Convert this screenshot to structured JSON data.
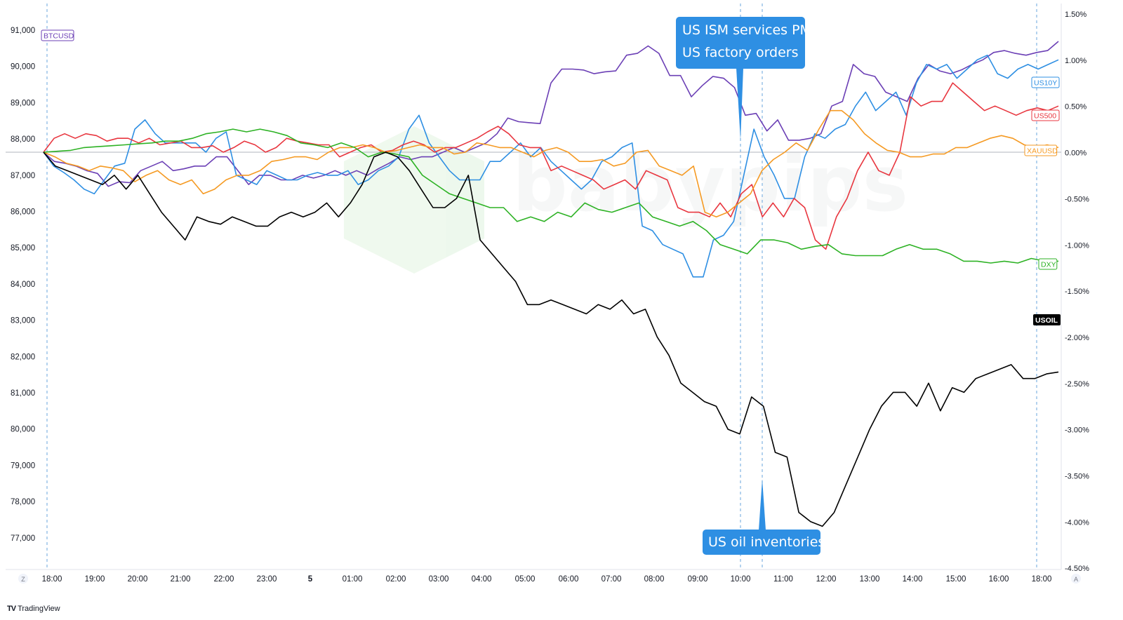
{
  "chart_data": {
    "type": "line",
    "left_axis": {
      "label": "BTCUSD",
      "ticks": [
        "91,000",
        "90,000",
        "89,000",
        "88,000",
        "87,000",
        "86,000",
        "85,000",
        "84,000",
        "83,000",
        "82,000",
        "81,000",
        "80,000",
        "79,000",
        "78,000",
        "77,000"
      ],
      "range": [
        76200,
        91500
      ]
    },
    "right_axis": {
      "ticks": [
        "1.50%",
        "1.00%",
        "0.50%",
        "0.00%",
        "-0.50%",
        "-1.00%",
        "-1.50%",
        "-2.00%",
        "-2.50%",
        "-3.00%",
        "-3.50%",
        "-4.00%",
        "-4.50%"
      ],
      "range": [
        -4.5,
        1.5
      ]
    },
    "x_ticks": [
      "18:00",
      "19:00",
      "20:00",
      "21:00",
      "22:00",
      "23:00",
      "5",
      "01:00",
      "02:00",
      "03:00",
      "04:00",
      "05:00",
      "06:00",
      "07:00",
      "08:00",
      "09:00",
      "10:00",
      "11:00",
      "12:00",
      "13:00",
      "14:00",
      "15:00",
      "16:00",
      "18:00"
    ],
    "series": [
      {
        "name": "BTCUSD",
        "color": "#6b3fb5",
        "values": [
          0,
          -0.1,
          -0.12,
          -0.15,
          -0.2,
          -0.23,
          -0.37,
          -0.32,
          -0.33,
          -0.2,
          -0.15,
          -0.1,
          -0.2,
          -0.18,
          -0.15,
          -0.15,
          -0.05,
          -0.05,
          -0.2,
          -0.35,
          -0.25,
          -0.25,
          -0.3,
          -0.3,
          -0.25,
          -0.28,
          -0.25,
          -0.2,
          -0.25,
          -0.2,
          -0.25,
          -0.18,
          -0.12,
          -0.05,
          -0.08,
          -0.05,
          -0.05,
          0,
          0.05,
          0.0,
          0.05,
          0.1,
          0.2,
          0.37,
          0.33,
          0.32,
          0.31,
          0.75,
          0.9,
          0.9,
          0.89,
          0.85,
          0.87,
          0.88,
          1.05,
          1.07,
          1.15,
          1.07,
          0.83,
          0.83,
          0.6,
          0.72,
          0.82,
          0.8,
          0.7,
          0.4,
          0.42,
          0.23,
          0.35,
          0.13,
          0.13,
          0.15,
          0.2,
          0.5,
          0.55,
          0.95,
          0.85,
          0.82,
          0.65,
          0.6,
          0.55,
          0.8,
          0.95,
          0.88,
          0.85,
          0.89,
          0.95,
          1.0,
          1.08,
          1.1,
          1.07,
          1.05,
          1.08,
          1.1,
          1.2
        ]
      },
      {
        "name": "US10Y",
        "color": "#2e8fe3",
        "values": [
          0,
          -0.15,
          -0.22,
          -0.3,
          -0.4,
          -0.45,
          -0.3,
          -0.15,
          -0.12,
          0.25,
          0.35,
          0.2,
          0.1,
          0.1,
          0.1,
          0.1,
          0.0,
          0.15,
          0.22,
          -0.25,
          -0.3,
          -0.35,
          -0.2,
          -0.25,
          -0.3,
          -0.3,
          -0.25,
          -0.22,
          -0.25,
          -0.25,
          -0.2,
          -0.35,
          -0.3,
          -0.2,
          -0.15,
          -0.05,
          0.25,
          0.4,
          0.1,
          -0.05,
          -0.2,
          -0.3,
          -0.3,
          -0.3,
          -0.1,
          -0.1,
          0.0,
          0.1,
          -0.05,
          0.05,
          -0.1,
          -0.2,
          -0.3,
          -0.4,
          -0.3,
          -0.1,
          -0.05,
          0.05,
          0.1,
          -0.8,
          -0.85,
          -1.0,
          -1.05,
          -1.1,
          -1.35,
          -1.35,
          -0.95,
          -0.9,
          -0.75,
          -0.25,
          0.25,
          -0.05,
          -0.25,
          -0.5,
          -0.5,
          -0.05,
          0.2,
          0.15,
          0.25,
          0.3,
          0.5,
          0.65,
          0.45,
          0.55,
          0.65,
          0.4,
          0.75,
          0.95,
          0.9,
          0.95,
          0.8,
          0.9,
          1.0,
          1.05,
          0.85,
          0.8,
          0.9,
          0.95,
          0.9,
          0.95,
          1.0
        ]
      },
      {
        "name": "US500",
        "color": "#e8363f",
        "values": [
          0,
          0.15,
          0.2,
          0.15,
          0.2,
          0.18,
          0.12,
          0.15,
          0.15,
          0.1,
          0.15,
          0.08,
          0.1,
          0.12,
          0.05,
          0.05,
          0.07,
          0.0,
          0.05,
          0.12,
          0.08,
          0.0,
          0.05,
          0.15,
          0.12,
          0.1,
          0.08,
          0.08,
          -0.05,
          0.0,
          0.05,
          0.08,
          0.0,
          0.02,
          0.08,
          0.12,
          0.08,
          0.0,
          0.05,
          0.05,
          0.1,
          0.15,
          0.22,
          0.28,
          0.2,
          0.08,
          0.05,
          0.05,
          -0.2,
          -0.15,
          -0.2,
          -0.25,
          -0.3,
          -0.4,
          -0.35,
          -0.3,
          -0.4,
          -0.2,
          -0.25,
          -0.3,
          -0.6,
          -0.65,
          -0.65,
          -0.7,
          -0.55,
          -0.7,
          -0.45,
          -0.35,
          -0.7,
          -0.55,
          -0.7,
          -0.5,
          -0.6,
          -0.95,
          -1.05,
          -0.7,
          -0.5,
          -0.2,
          0.0,
          -0.2,
          -0.25,
          0.0,
          0.6,
          0.5,
          0.55,
          0.55,
          0.75,
          0.65,
          0.55,
          0.45,
          0.5,
          0.45,
          0.4,
          0.45,
          0.48,
          0.45,
          0.5
        ]
      },
      {
        "name": "XAUUSD",
        "color": "#f59a23",
        "values": [
          0,
          -0.05,
          -0.12,
          -0.15,
          -0.2,
          -0.15,
          -0.17,
          -0.2,
          -0.32,
          -0.25,
          -0.2,
          -0.3,
          -0.35,
          -0.3,
          -0.45,
          -0.4,
          -0.3,
          -0.25,
          -0.25,
          -0.2,
          -0.1,
          -0.08,
          -0.05,
          -0.05,
          -0.08,
          0.0,
          0.05,
          0.05,
          0.08,
          0.05,
          0.0,
          0.02,
          0.05,
          0.08,
          0.05,
          0.05,
          -0.02,
          0.0,
          0.1,
          0.08,
          0.05,
          0.05,
          0.0,
          -0.05,
          0.02,
          0.05,
          0.0,
          -0.1,
          -0.1,
          -0.08,
          -0.15,
          -0.12,
          0.0,
          0.02,
          -0.15,
          -0.2,
          -0.25,
          -0.15,
          -0.65,
          -0.7,
          -0.65,
          -0.55,
          -0.45,
          -0.2,
          -0.08,
          0.0,
          0.1,
          0.02,
          0.25,
          0.45,
          0.45,
          0.35,
          0.2,
          0.1,
          0.02,
          0.0,
          -0.05,
          -0.05,
          -0.02,
          -0.02,
          0.05,
          0.05,
          0.1,
          0.15,
          0.18,
          0.15,
          0.08,
          0.05,
          0.08,
          0.05
        ]
      },
      {
        "name": "DXY",
        "color": "#2db224",
        "values": [
          0,
          0.01,
          0.02,
          0.05,
          0.06,
          0.07,
          0.08,
          0.09,
          0.1,
          0.12,
          0.12,
          0.15,
          0.2,
          0.22,
          0.25,
          0.22,
          0.25,
          0.22,
          0.18,
          0.1,
          0.08,
          0.05,
          0.1,
          0.05,
          -0.05,
          0.0,
          -0.02,
          -0.05,
          -0.25,
          -0.35,
          -0.45,
          -0.5,
          -0.55,
          -0.6,
          -0.6,
          -0.75,
          -0.7,
          -0.75,
          -0.65,
          -0.7,
          -0.55,
          -0.62,
          -0.65,
          -0.6,
          -0.55,
          -0.7,
          -0.75,
          -0.8,
          -0.75,
          -0.85,
          -1.0,
          -1.05,
          -1.1,
          -0.95,
          -0.95,
          -0.98,
          -1.05,
          -1.02,
          -1.0,
          -1.1,
          -1.12,
          -1.12,
          -1.12,
          -1.05,
          -1.0,
          -1.05,
          -1.05,
          -1.1,
          -1.18,
          -1.18,
          -1.2,
          -1.18,
          -1.2,
          -1.15,
          -1.18,
          -1.18
        ]
      },
      {
        "name": "USOIL",
        "color": "#000000",
        "values": [
          0,
          -0.15,
          -0.2,
          -0.25,
          -0.3,
          -0.35,
          -0.25,
          -0.4,
          -0.25,
          -0.45,
          -0.65,
          -0.8,
          -0.95,
          -0.7,
          -0.75,
          -0.78,
          -0.7,
          -0.75,
          -0.8,
          -0.8,
          -0.7,
          -0.65,
          -0.7,
          -0.65,
          -0.55,
          -0.7,
          -0.55,
          -0.35,
          -0.05,
          0.0,
          -0.05,
          -0.2,
          -0.4,
          -0.6,
          -0.6,
          -0.5,
          -0.25,
          -0.95,
          -1.1,
          -1.25,
          -1.4,
          -1.65,
          -1.65,
          -1.6,
          -1.65,
          -1.7,
          -1.75,
          -1.65,
          -1.7,
          -1.6,
          -1.75,
          -1.7,
          -2.0,
          -2.2,
          -2.5,
          -2.6,
          -2.7,
          -2.75,
          -3.0,
          -3.05,
          -2.65,
          -2.75,
          -3.25,
          -3.3,
          -3.9,
          -4.0,
          -4.05,
          -3.9,
          -3.6,
          -3.3,
          -3.0,
          -2.75,
          -2.6,
          -2.6,
          -2.75,
          -2.5,
          -2.8,
          -2.55,
          -2.6,
          -2.45,
          -2.4,
          -2.35,
          -2.3,
          -2.45,
          -2.45,
          -2.4,
          -2.38
        ]
      }
    ],
    "annotations": [
      {
        "lines": [
          "US ISM services PMI",
          "US factory orders"
        ],
        "time": "10:00"
      },
      {
        "lines": [
          "US oil inventories"
        ],
        "time": "10:30"
      }
    ]
  },
  "footer": {
    "brand": "TradingView",
    "logo_mark": "TV"
  },
  "axis_buttons": {
    "left": "Z",
    "right": "A"
  },
  "watermark": "babypips",
  "colors": {
    "grid": "#e0e3eb",
    "zero_line": "#b2b5be",
    "callout": "#2e8fe3",
    "vline": "#6aa6dc"
  }
}
